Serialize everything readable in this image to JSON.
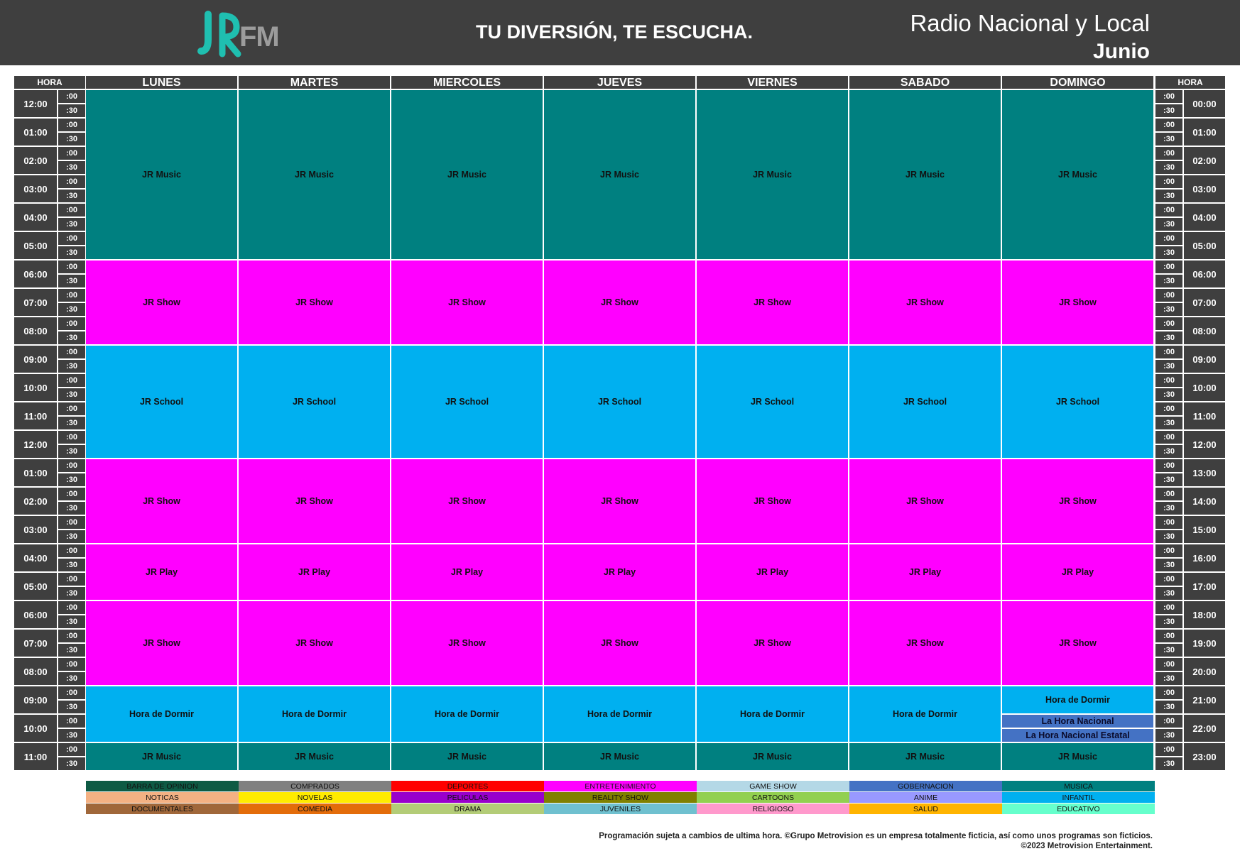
{
  "header": {
    "logo_text": "FM",
    "slogan": "TU DIVERSIÓN, TE ESCUCHA.",
    "title": "Radio Nacional y Local",
    "month": "Junio"
  },
  "grid": {
    "hour_label_left": "HORA",
    "hour_label_right": "HORA",
    "days": [
      "LUNES",
      "MARTES",
      "MIERCOLES",
      "JUEVES",
      "VIERNES",
      "SABADO",
      "DOMINGO"
    ],
    "left_hours": [
      "12:00",
      "01:00",
      "02:00",
      "03:00",
      "04:00",
      "05:00",
      "06:00",
      "07:00",
      "08:00",
      "09:00",
      "10:00",
      "11:00",
      "12:00",
      "01:00",
      "02:00",
      "03:00",
      "04:00",
      "05:00",
      "06:00",
      "07:00",
      "08:00",
      "09:00",
      "10:00",
      "11:00"
    ],
    "right_hours": [
      "00:00",
      "01:00",
      "02:00",
      "03:00",
      "04:00",
      "05:00",
      "06:00",
      "07:00",
      "08:00",
      "09:00",
      "10:00",
      "11:00",
      "12:00",
      "13:00",
      "14:00",
      "15:00",
      "16:00",
      "17:00",
      "18:00",
      "19:00",
      "20:00",
      "21:00",
      "22:00",
      "23:00"
    ],
    "minutes": [
      ":00",
      ":30"
    ],
    "blocks": [
      {
        "label": "JR Music",
        "start": 0,
        "end": 12,
        "color": "#008080"
      },
      {
        "label": "JR Show",
        "start": 12,
        "end": 18,
        "color": "#ff00ff"
      },
      {
        "label": "JR School",
        "start": 18,
        "end": 26,
        "color": "#00b0f0"
      },
      {
        "label": "JR Show",
        "start": 26,
        "end": 32,
        "color": "#ff00ff"
      },
      {
        "label": "JR Play",
        "start": 32,
        "end": 36,
        "color": "#ff00ff"
      },
      {
        "label": "JR Show",
        "start": 36,
        "end": 42,
        "color": "#ff00ff"
      },
      {
        "label": "Hora de Dormir",
        "start": 42,
        "end": 46,
        "color": "#00b0f0"
      },
      {
        "label": "JR Music",
        "start": 46,
        "end": 48,
        "color": "#008080"
      }
    ],
    "sunday_blocks": [
      {
        "label": "Hora de Dormir",
        "start": 42,
        "end": 44,
        "color": "#00b0f0"
      },
      {
        "label": "La Hora Nacional",
        "start": 44,
        "end": 45,
        "color": "#4472c4"
      },
      {
        "label": "La Hora Nacional Estatal",
        "start": 45,
        "end": 46,
        "color": "#4472c4"
      }
    ]
  },
  "legend": [
    {
      "label": "BARRA DE OPINION",
      "color": "#0e5a44"
    },
    {
      "label": "COMPRADOS",
      "color": "#808080"
    },
    {
      "label": "DEPORTES",
      "color": "#ff0000"
    },
    {
      "label": "ENTRETENIMIENTO",
      "color": "#ff00ff"
    },
    {
      "label": "GAME SHOW",
      "color": "#b4d8e6"
    },
    {
      "label": "GOBERNACION",
      "color": "#4472c4"
    },
    {
      "label": "MUSICA",
      "color": "#008080"
    },
    {
      "label": "NOTICAS",
      "color": "#f4b183"
    },
    {
      "label": "NOVELAS",
      "color": "#ffeb00"
    },
    {
      "label": "PELICULAS",
      "color": "#9900cc"
    },
    {
      "label": "REALITY SHOW",
      "color": "#808000"
    },
    {
      "label": "CARTOONS",
      "color": "#92d050"
    },
    {
      "label": "ANIME",
      "color": "#9999ff"
    },
    {
      "label": "INFANTIL",
      "color": "#00b0f0"
    },
    {
      "label": "DOCUMENTALES",
      "color": "#a0673a"
    },
    {
      "label": "COMEDIA",
      "color": "#e36c0a"
    },
    {
      "label": "DRAMA",
      "color": "#b3cc77"
    },
    {
      "label": "JUVENILES",
      "color": "#6fc0cf"
    },
    {
      "label": "RELIGIOSO",
      "color": "#ff99cc"
    },
    {
      "label": "SALUD",
      "color": "#ffb400"
    },
    {
      "label": "EDUCATIVO",
      "color": "#66ffcc"
    }
  ],
  "footer": {
    "line1": "Programación sujeta a cambios de ultima hora. ©Grupo Metrovision es un empresa totalmente ficticia, así como unos programas son ficticios.",
    "line2": "©2023 Metrovision Entertainment."
  }
}
